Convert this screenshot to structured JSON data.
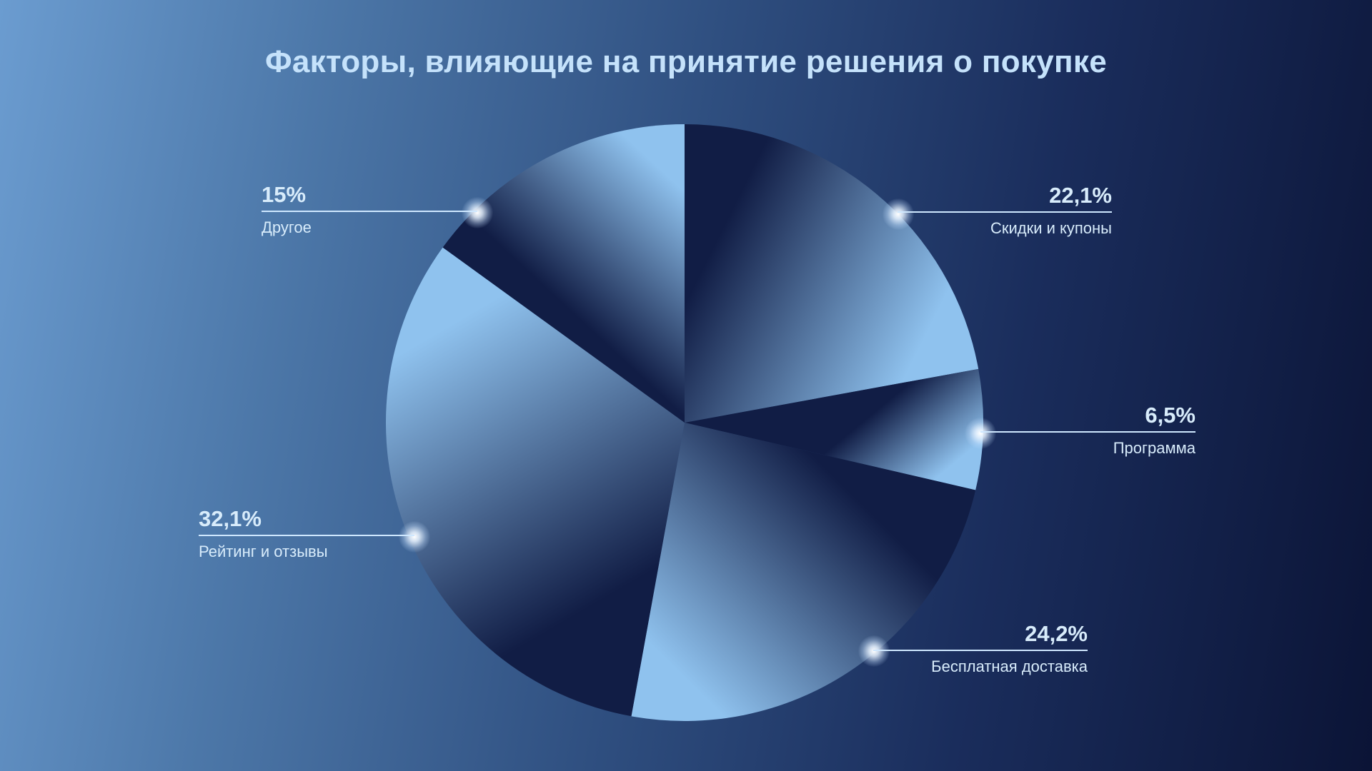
{
  "chart_data": {
    "type": "pie",
    "title": "Факторы, влияющие на принятие решения о покупке",
    "slices": [
      {
        "label": "Скидки и купоны",
        "value": 22.1,
        "display": "22,1%"
      },
      {
        "label": "Программа",
        "value": 6.5,
        "display": "6,5%"
      },
      {
        "label": "Бесплатная доставка",
        "value": 24.2,
        "display": "24,2%"
      },
      {
        "label": "Рейтинг и отзывы",
        "value": 32.1,
        "display": "32,1%"
      },
      {
        "label": "Другое",
        "value": 15,
        "display": "15%"
      }
    ],
    "start_angle": "12 o'clock, clockwise",
    "legend": "none",
    "grid": false
  },
  "colors": {
    "background_light": "#6b9cd0",
    "background_dark": "#0b1436",
    "slice_light": "#8fc2ee",
    "slice_dark": "#111d45",
    "title": "#c5e2fb",
    "label": "#d8ecfb"
  }
}
